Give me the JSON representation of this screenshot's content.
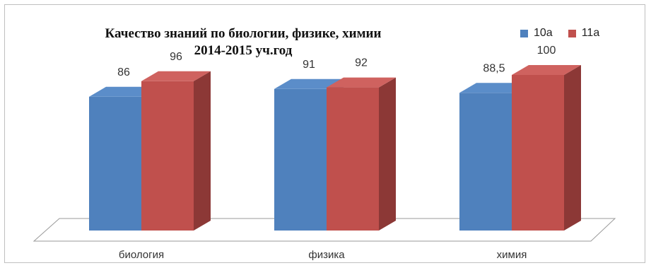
{
  "chart_data": {
    "type": "bar",
    "title": [
      "Качество знаний по биологии, физике, химии",
      "2014-2015 уч.год"
    ],
    "categories": [
      "биология",
      "физика",
      "химия"
    ],
    "series": [
      {
        "name": "10а",
        "values": [
          86,
          91,
          88.5
        ],
        "color": "#4f81bd",
        "side": "#3a6595",
        "top": "#5b8dc9"
      },
      {
        "name": "11а",
        "values": [
          96,
          92,
          100
        ],
        "color": "#c0504d",
        "side": "#8c3836",
        "top": "#cf625f"
      }
    ],
    "data_labels": [
      [
        "86",
        "91",
        "88,5"
      ],
      [
        "96",
        "92",
        "100"
      ]
    ],
    "legend_position": "top-right",
    "grid": false
  }
}
